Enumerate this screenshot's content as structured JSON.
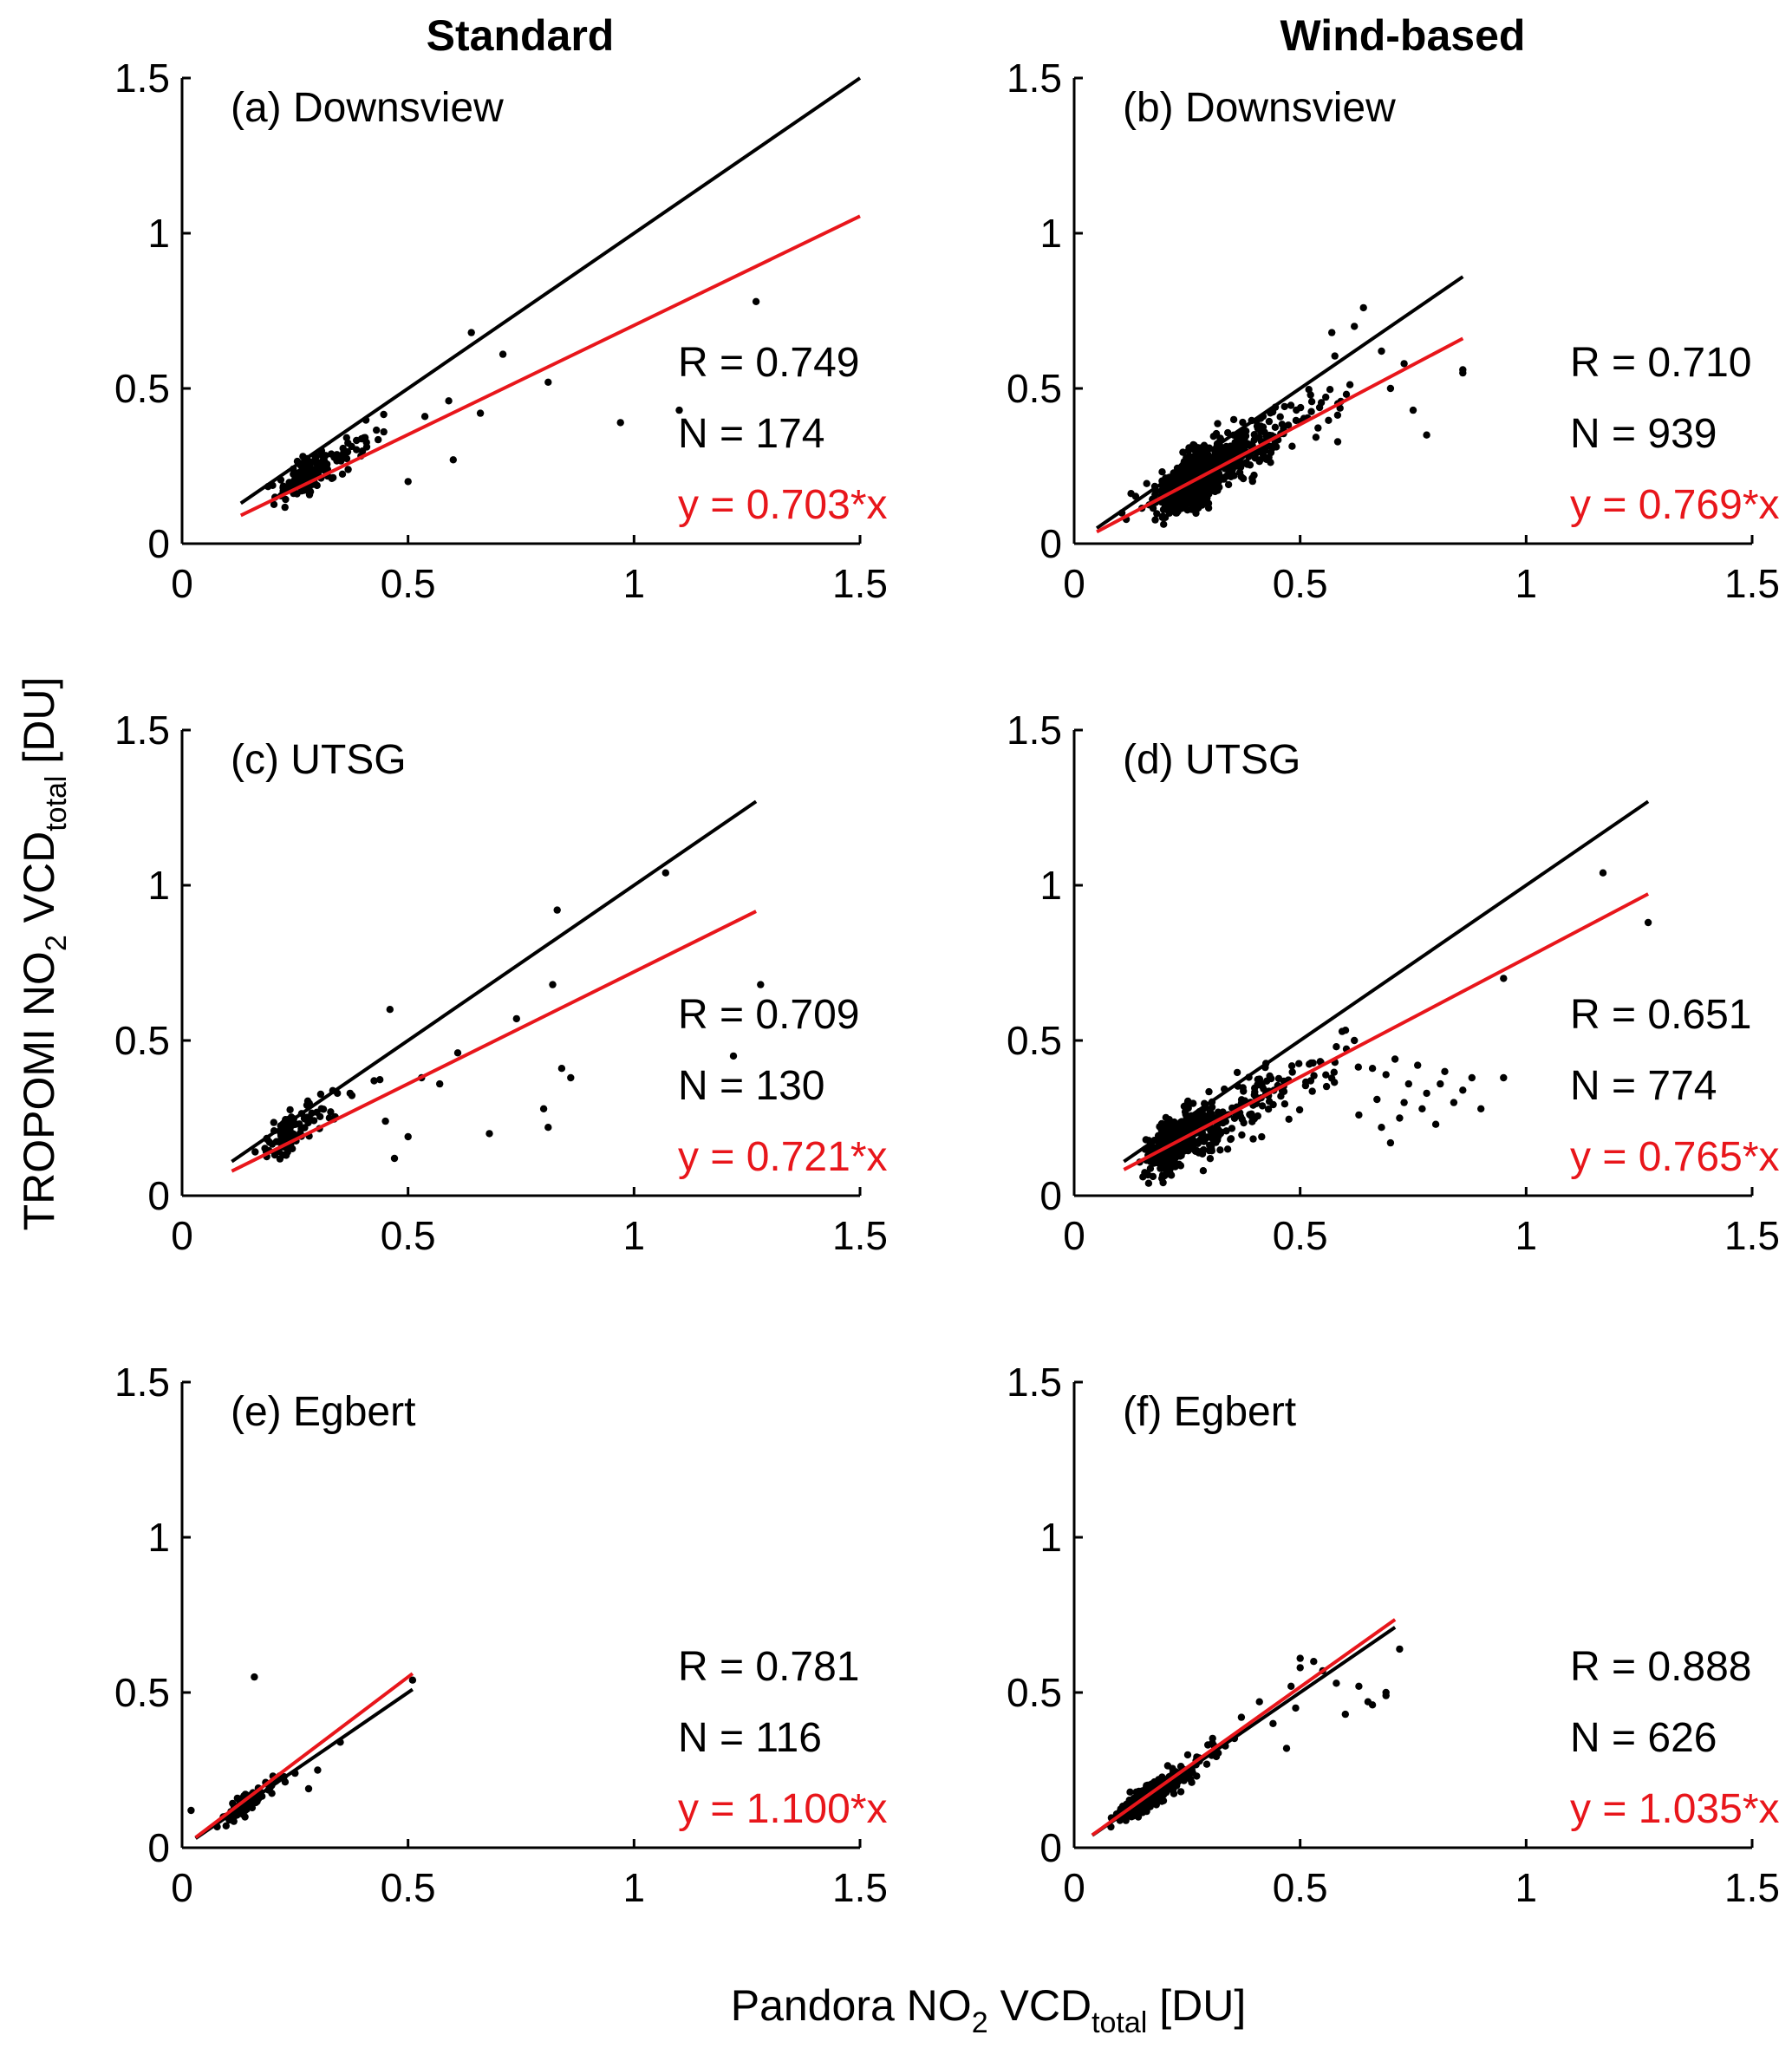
{
  "figure": {
    "column_titles": [
      "Standard",
      "Wind-based"
    ],
    "ylabel": {
      "main": "TROPOMI NO",
      "sub1": "2",
      "mid": " VCD",
      "sub2": "total",
      "unit": " [DU]"
    },
    "xlabel": {
      "main": "Pandora NO",
      "sub1": "2",
      "mid": " VCD",
      "sub2": "total",
      "unit": " [DU]"
    }
  },
  "chart_data": [
    {
      "type": "scatter",
      "title": "(a) Downsview",
      "column": "Standard",
      "xlim": [
        0,
        1.5
      ],
      "ylim": [
        0,
        1.5
      ],
      "xticks": [
        "0",
        "0.5",
        "1",
        "1.5"
      ],
      "yticks": [
        "0",
        "0.5",
        "1",
        "1.5"
      ],
      "stats": [
        "R = 0.749",
        "N = 174"
      ],
      "fit_label": "y = 0.703*x",
      "one_to_one": [
        [
          0.13,
          0.13
        ],
        [
          1.5,
          1.5
        ]
      ],
      "fit_line": [
        [
          0.13,
          0.091
        ],
        [
          1.5,
          1.055
        ]
      ],
      "cloud": {
        "n": 174,
        "x_range": [
          0.12,
          0.62
        ],
        "x_mode": 0.28,
        "slope": 0.8,
        "sd": 0.045,
        "seed": 11
      },
      "points": [
        [
          0.64,
          0.68
        ],
        [
          0.71,
          0.61
        ],
        [
          0.81,
          0.52
        ],
        [
          0.97,
          0.39
        ],
        [
          1.1,
          0.43
        ],
        [
          1.27,
          0.78
        ],
        [
          0.6,
          0.27
        ],
        [
          0.66,
          0.42
        ],
        [
          0.59,
          0.46
        ],
        [
          0.5,
          0.2
        ]
      ]
    },
    {
      "type": "scatter",
      "title": "(b) Downsview",
      "column": "Wind-based",
      "xlim": [
        0,
        1.5
      ],
      "ylim": [
        0,
        1.5
      ],
      "xticks": [
        "0",
        "0.5",
        "1",
        "1.5"
      ],
      "yticks": [
        "0",
        "0.5",
        "1",
        "1.5"
      ],
      "stats": [
        "R = 0.710",
        "N = 939"
      ],
      "fit_label": "y = 0.769*x",
      "one_to_one": [
        [
          0.05,
          0.05
        ],
        [
          0.86,
          0.86
        ]
      ],
      "fit_line": [
        [
          0.05,
          0.038
        ],
        [
          0.86,
          0.661
        ]
      ],
      "cloud": {
        "n": 900,
        "x_range": [
          0.05,
          0.72
        ],
        "x_mode": 0.28,
        "slope": 0.8,
        "sd": 0.07,
        "seed": 23
      },
      "points": [
        [
          0.64,
          0.76
        ],
        [
          0.86,
          0.56
        ],
        [
          0.86,
          0.55
        ],
        [
          0.78,
          0.35
        ],
        [
          0.75,
          0.43
        ],
        [
          0.7,
          0.5
        ],
        [
          0.68,
          0.62
        ],
        [
          0.73,
          0.58
        ],
        [
          0.57,
          0.68
        ],
        [
          0.62,
          0.7
        ]
      ]
    },
    {
      "type": "scatter",
      "title": "(c) UTSG",
      "column": "Standard",
      "xlim": [
        0,
        1.5
      ],
      "ylim": [
        0,
        1.5
      ],
      "xticks": [
        "0",
        "0.5",
        "1",
        "1.5"
      ],
      "yticks": [
        "0",
        "0.5",
        "1",
        "1.5"
      ],
      "stats": [
        "R = 0.709",
        "N = 130"
      ],
      "fit_label": "y = 0.721*x",
      "one_to_one": [
        [
          0.11,
          0.11
        ],
        [
          1.27,
          1.27
        ]
      ],
      "fit_line": [
        [
          0.11,
          0.079
        ],
        [
          1.27,
          0.916
        ]
      ],
      "cloud": {
        "n": 112,
        "x_range": [
          0.1,
          0.62
        ],
        "x_mode": 0.24,
        "slope": 0.85,
        "sd": 0.05,
        "seed": 37
      },
      "points": [
        [
          1.07,
          1.04
        ],
        [
          0.83,
          0.92
        ],
        [
          0.82,
          0.68
        ],
        [
          0.84,
          0.41
        ],
        [
          0.86,
          0.38
        ],
        [
          0.8,
          0.28
        ],
        [
          0.81,
          0.22
        ],
        [
          0.68,
          0.2
        ],
        [
          0.74,
          0.57
        ],
        [
          1.22,
          0.45
        ],
        [
          1.28,
          0.68
        ],
        [
          0.5,
          0.19
        ],
        [
          0.47,
          0.12
        ],
        [
          0.46,
          0.6
        ],
        [
          0.61,
          0.46
        ],
        [
          0.57,
          0.36
        ],
        [
          0.53,
          0.38
        ],
        [
          0.45,
          0.24
        ]
      ]
    },
    {
      "type": "scatter",
      "title": "(d) UTSG",
      "column": "Wind-based",
      "xlim": [
        0,
        1.5
      ],
      "ylim": [
        0,
        1.5
      ],
      "xticks": [
        "0",
        "0.5",
        "1",
        "1.5"
      ],
      "yticks": [
        "0",
        "0.5",
        "1",
        "1.5"
      ],
      "stats": [
        "R = 0.651",
        "N = 774"
      ],
      "fit_label": "y = 0.765*x",
      "one_to_one": [
        [
          0.11,
          0.11
        ],
        [
          1.27,
          1.27
        ]
      ],
      "fit_line": [
        [
          0.11,
          0.084
        ],
        [
          1.27,
          0.972
        ]
      ],
      "cloud": {
        "n": 720,
        "x_range": [
          0.1,
          0.75
        ],
        "x_mode": 0.22,
        "slope": 0.75,
        "sd": 0.07,
        "seed": 51
      },
      "points": [
        [
          1.17,
          1.04
        ],
        [
          1.27,
          0.88
        ],
        [
          0.95,
          0.7
        ],
        [
          0.88,
          0.38
        ],
        [
          0.95,
          0.38
        ],
        [
          0.8,
          0.23
        ],
        [
          0.84,
          0.3
        ],
        [
          0.7,
          0.17
        ],
        [
          0.62,
          0.5
        ],
        [
          0.78,
          0.33
        ],
        [
          0.9,
          0.28
        ],
        [
          0.72,
          0.25
        ],
        [
          0.66,
          0.41
        ],
        [
          0.74,
          0.36
        ],
        [
          0.82,
          0.4
        ],
        [
          0.58,
          0.48
        ],
        [
          0.69,
          0.39
        ],
        [
          0.77,
          0.28
        ],
        [
          0.67,
          0.31
        ],
        [
          0.86,
          0.34
        ],
        [
          0.71,
          0.44
        ],
        [
          0.63,
          0.26
        ],
        [
          0.76,
          0.42
        ],
        [
          0.81,
          0.36
        ],
        [
          0.73,
          0.3
        ],
        [
          0.68,
          0.22
        ]
      ]
    },
    {
      "type": "scatter",
      "title": "(e) Egbert",
      "column": "Standard",
      "xlim": [
        0,
        1.5
      ],
      "ylim": [
        0,
        1.5
      ],
      "xticks": [
        "0",
        "0.5",
        "1",
        "1.5"
      ],
      "yticks": [
        "0",
        "0.5",
        "1",
        "1.5"
      ],
      "stats": [
        "R = 0.781",
        "N = 116"
      ],
      "fit_label": "y = 1.100*x",
      "one_to_one": [
        [
          0.03,
          0.03
        ],
        [
          0.51,
          0.51
        ]
      ],
      "fit_line": [
        [
          0.03,
          0.033
        ],
        [
          0.51,
          0.561
        ]
      ],
      "cloud": {
        "n": 108,
        "x_range": [
          0.05,
          0.3
        ],
        "x_mode": 0.14,
        "slope": 1.0,
        "sd": 0.03,
        "seed": 67
      },
      "points": [
        [
          0.16,
          0.55
        ],
        [
          0.51,
          0.54
        ],
        [
          0.02,
          0.12
        ],
        [
          0.35,
          0.34
        ],
        [
          0.28,
          0.19
        ],
        [
          0.3,
          0.25
        ],
        [
          0.25,
          0.24
        ]
      ]
    },
    {
      "type": "scatter",
      "title": "(f) Egbert",
      "column": "Wind-based",
      "xlim": [
        0,
        1.5
      ],
      "ylim": [
        0,
        1.5
      ],
      "xticks": [
        "0",
        "0.5",
        "1",
        "1.5"
      ],
      "yticks": [
        "0",
        "0.5",
        "1",
        "1.5"
      ],
      "stats": [
        "R = 0.888",
        "N = 626"
      ],
      "fit_label": "y = 1.035*x",
      "one_to_one": [
        [
          0.04,
          0.04
        ],
        [
          0.71,
          0.71
        ]
      ],
      "fit_line": [
        [
          0.04,
          0.041
        ],
        [
          0.71,
          0.735
        ]
      ],
      "cloud": {
        "n": 580,
        "x_range": [
          0.05,
          0.4
        ],
        "x_mode": 0.16,
        "slope": 1.0,
        "sd": 0.035,
        "seed": 79
      },
      "points": [
        [
          0.5,
          0.61
        ],
        [
          0.53,
          0.6
        ],
        [
          0.63,
          0.52
        ],
        [
          0.69,
          0.49
        ],
        [
          0.69,
          0.5
        ],
        [
          0.72,
          0.64
        ],
        [
          0.6,
          0.43
        ],
        [
          0.65,
          0.47
        ],
        [
          0.48,
          0.52
        ],
        [
          0.55,
          0.57
        ],
        [
          0.44,
          0.4
        ],
        [
          0.41,
          0.47
        ],
        [
          0.37,
          0.42
        ],
        [
          0.47,
          0.32
        ],
        [
          0.49,
          0.45
        ],
        [
          0.5,
          0.58
        ],
        [
          0.58,
          0.53
        ],
        [
          0.66,
          0.46
        ]
      ]
    }
  ]
}
